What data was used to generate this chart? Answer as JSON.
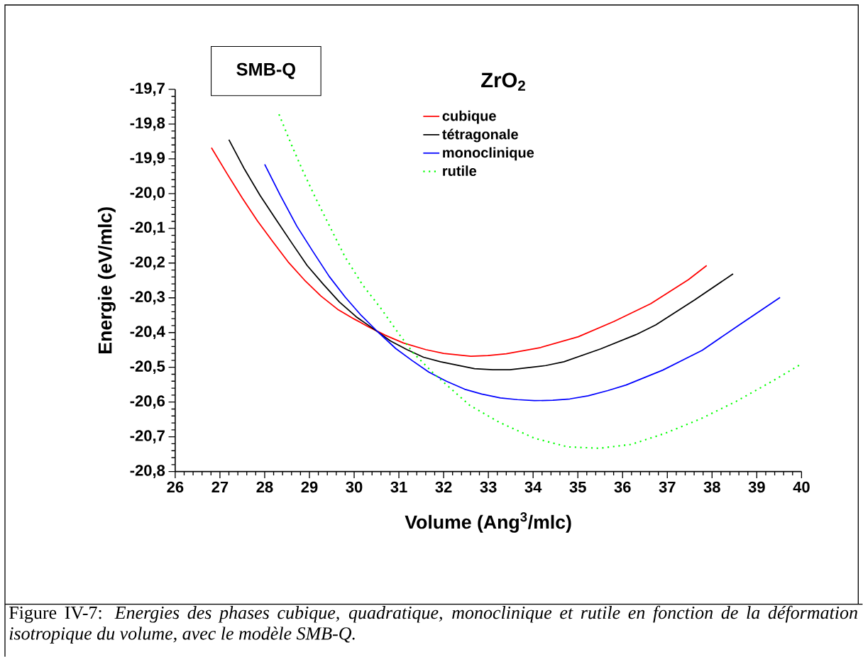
{
  "chart_data": {
    "type": "line",
    "legend_title": "ZrO$_{2}$",
    "xlabel": "Volume (Ang$^{3}$/mlc)",
    "ylabel": "Energie (eV/mlc)",
    "annotations": [
      "SMB-Q",
      "Figure IV-7: *Energies des phases cubique, quadratique, monoclinique et rutile en fonction de la déformation isotropique du volume, avec le modèle SMB-Q.*"
    ],
    "xlim": [
      26,
      40
    ],
    "ylim": [
      -20.8,
      -19.7
    ],
    "xticks": [
      26,
      27,
      28,
      29,
      30,
      31,
      32,
      33,
      34,
      35,
      36,
      37,
      38,
      39,
      40
    ],
    "yticks": [
      {
        "value": -20.8,
        "label": "-20,8"
      },
      {
        "value": -20.7,
        "label": "-20,7"
      },
      {
        "value": -20.6,
        "label": "-20,6"
      },
      {
        "value": -20.5,
        "label": "-20,5"
      },
      {
        "value": -20.4,
        "label": "-20,4"
      },
      {
        "value": -20.3,
        "label": "-20,3"
      },
      {
        "value": -20.2,
        "label": "-20,2"
      },
      {
        "value": -20.1,
        "label": "-20,1"
      },
      {
        "value": -20.0,
        "label": "-20,0"
      },
      {
        "value": -19.9,
        "label": "-19,9"
      },
      {
        "value": -19.8,
        "label": "-19,8"
      },
      {
        "value": -19.7,
        "label": "-19,7"
      }
    ],
    "legend": "top",
    "marker": "none",
    "grid": false,
    "series": [
      {
        "name": "cubique",
        "color": "#ff0000",
        "line_style": "solid",
        "x": [
          26.81,
          27.16,
          27.5,
          27.84,
          28.18,
          28.52,
          28.89,
          29.26,
          29.63,
          30.0,
          30.33,
          30.7,
          31.1,
          31.6,
          32.0,
          32.61,
          32.99,
          33.4,
          34.17,
          35.01,
          35.81,
          36.63,
          37.47,
          37.88
        ],
        "values": [
          -19.868,
          -19.943,
          -20.013,
          -20.079,
          -20.138,
          -20.196,
          -20.249,
          -20.295,
          -20.333,
          -20.361,
          -20.384,
          -20.408,
          -20.43,
          -20.449,
          -20.46,
          -20.468,
          -20.466,
          -20.461,
          -20.443,
          -20.412,
          -20.368,
          -20.317,
          -20.248,
          -20.207
        ]
      },
      {
        "name": "tétragonale",
        "color": "#000000",
        "line_style": "solid",
        "x": [
          27.2,
          27.55,
          27.9,
          28.26,
          28.61,
          28.95,
          29.31,
          29.67,
          30.05,
          30.42,
          30.81,
          31.18,
          31.55,
          31.93,
          32.69,
          33.1,
          33.48,
          34.28,
          34.69,
          35.51,
          36.3,
          36.74,
          37.61,
          38.47
        ],
        "values": [
          -19.845,
          -19.93,
          -20.006,
          -20.076,
          -20.143,
          -20.207,
          -20.261,
          -20.312,
          -20.355,
          -20.388,
          -20.424,
          -20.449,
          -20.471,
          -20.484,
          -20.504,
          -20.507,
          -20.507,
          -20.495,
          -20.484,
          -20.447,
          -20.406,
          -20.378,
          -20.306,
          -20.231
        ]
      },
      {
        "name": "monoclinique",
        "color": "#0000ff",
        "line_style": "solid",
        "x": [
          28.0,
          28.35,
          28.72,
          29.08,
          29.44,
          29.8,
          30.16,
          30.53,
          30.93,
          31.3,
          31.67,
          32.06,
          32.47,
          32.85,
          33.27,
          33.65,
          34.03,
          34.44,
          34.82,
          35.23,
          35.67,
          36.08,
          36.9,
          37.78,
          38.62,
          39.52
        ],
        "values": [
          -19.916,
          -20.005,
          -20.094,
          -20.167,
          -20.238,
          -20.298,
          -20.351,
          -20.398,
          -20.446,
          -20.481,
          -20.514,
          -20.54,
          -20.563,
          -20.577,
          -20.588,
          -20.593,
          -20.596,
          -20.595,
          -20.591,
          -20.582,
          -20.567,
          -20.551,
          -20.508,
          -20.451,
          -20.377,
          -20.299
        ]
      },
      {
        "name": "rutile",
        "color": "#00ff00",
        "line_style": "dotted",
        "x": [
          28.32,
          28.61,
          28.83,
          29.12,
          29.46,
          29.8,
          30.19,
          30.59,
          30.99,
          31.33,
          31.78,
          32.58,
          33.24,
          34.03,
          34.77,
          35.48,
          36.19,
          36.95,
          37.75,
          38.54,
          39.36,
          40.0
        ],
        "values": [
          -19.772,
          -19.863,
          -19.928,
          -20.008,
          -20.096,
          -20.183,
          -20.263,
          -20.329,
          -20.402,
          -20.46,
          -20.518,
          -20.609,
          -20.658,
          -20.704,
          -20.729,
          -20.733,
          -20.722,
          -20.69,
          -20.648,
          -20.598,
          -20.539,
          -20.49
        ]
      }
    ]
  }
}
